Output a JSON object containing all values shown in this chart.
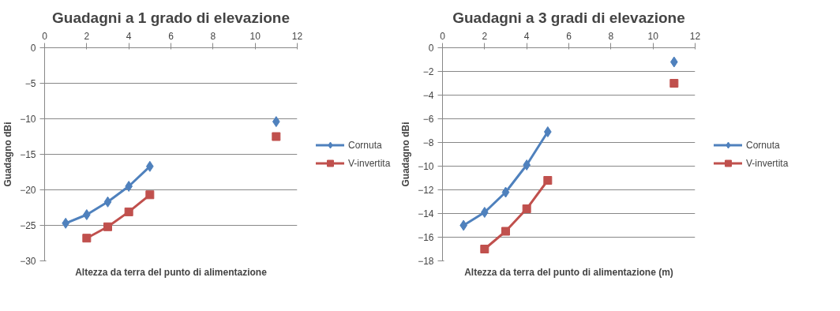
{
  "chart_data": [
    {
      "type": "line",
      "title": "Guadagni a 1 grado di elevazione",
      "xlabel": "Altezza da terra del punto di alimentazione",
      "ylabel": "Guadagno dBi",
      "xlim": [
        0,
        12
      ],
      "xticks": [
        0,
        2,
        4,
        6,
        8,
        10,
        12
      ],
      "ylim": [
        -30,
        0
      ],
      "yticks": [
        -30,
        -25,
        -20,
        -15,
        -10,
        -5,
        0
      ],
      "grid": "y",
      "legend": "right",
      "line_style": "solid",
      "series": [
        {
          "name": "Cornuta",
          "color": "#4f81bd",
          "marker": "diamond",
          "x": [
            1,
            2,
            3,
            4,
            5,
            null,
            11
          ],
          "values": [
            -24.7,
            -23.5,
            -21.7,
            -19.5,
            -16.7,
            null,
            -10.4
          ]
        },
        {
          "name": "V-invertita",
          "color": "#c0504d",
          "marker": "square",
          "x": [
            2,
            3,
            4,
            5,
            null,
            11
          ],
          "values": [
            -26.8,
            -25.2,
            -23.1,
            -20.7,
            null,
            -12.5
          ]
        }
      ]
    },
    {
      "type": "line",
      "title": "Guadagni a 3 gradi di elevazione",
      "xlabel": "Altezza da terra del punto di alimentazione (m)",
      "ylabel": "Guadagno dBi",
      "xlim": [
        0,
        12
      ],
      "xticks": [
        0,
        2,
        4,
        6,
        8,
        10,
        12
      ],
      "ylim": [
        -18,
        0
      ],
      "yticks": [
        -18,
        -16,
        -14,
        -12,
        -10,
        -8,
        -6,
        -4,
        -2,
        0
      ],
      "grid": "y",
      "legend": "right",
      "line_style": "solid",
      "series": [
        {
          "name": "Cornuta",
          "color": "#4f81bd",
          "marker": "diamond",
          "x": [
            1,
            2,
            3,
            4,
            5,
            null,
            11
          ],
          "values": [
            -15.0,
            -13.9,
            -12.2,
            -9.9,
            -7.1,
            null,
            -1.2
          ]
        },
        {
          "name": "V-invertita",
          "color": "#c0504d",
          "marker": "square",
          "x": [
            2,
            3,
            4,
            5,
            null,
            11
          ],
          "values": [
            -17.0,
            -15.5,
            -13.6,
            -11.2,
            null,
            -3.0
          ]
        }
      ]
    }
  ]
}
